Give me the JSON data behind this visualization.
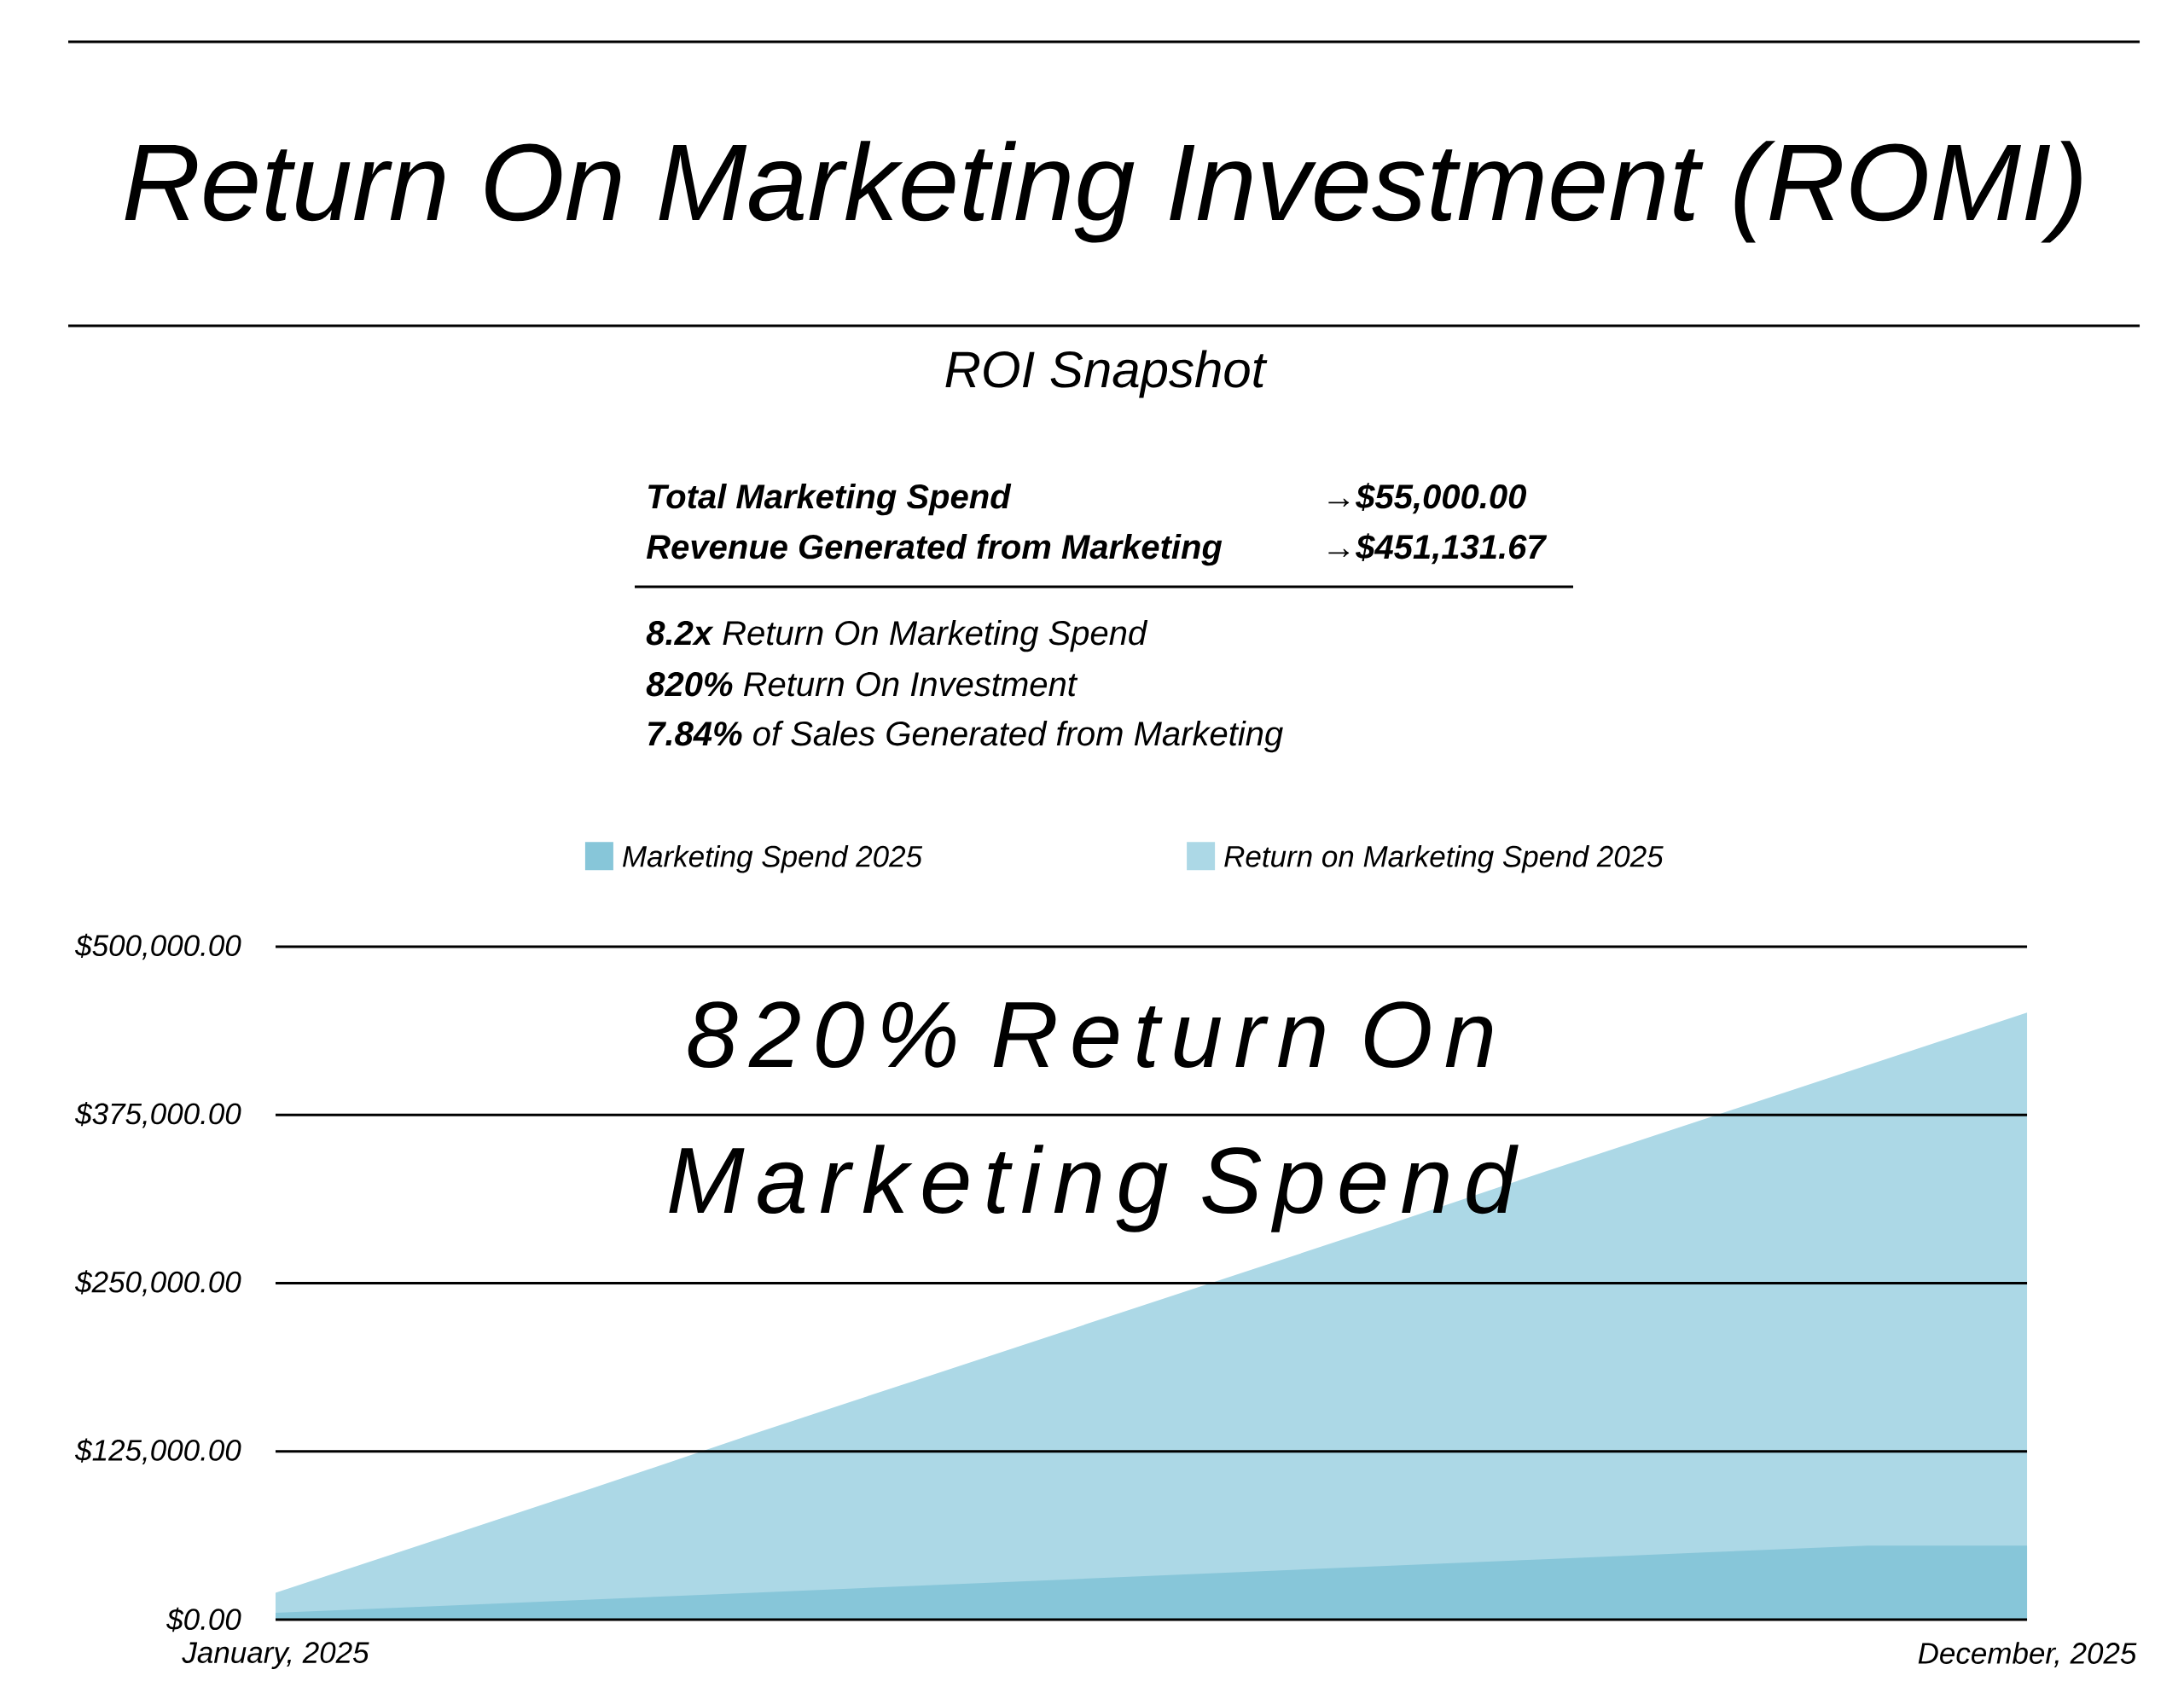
{
  "chart_data": {
    "type": "area",
    "title": "Return On Marketing Investment (ROMI)",
    "subtitle": "ROI Snapshot",
    "categories": [
      "January, 2025",
      null,
      null,
      null,
      null,
      null,
      null,
      null,
      null,
      null,
      null,
      "December, 2025"
    ],
    "series": [
      {
        "name": "Marketing Spend 2025",
        "color": "#87c6d9",
        "values": [
          5000,
          10000,
          15000,
          20000,
          25000,
          30000,
          35000,
          40000,
          45000,
          50000,
          55000,
          55000
        ]
      },
      {
        "name": "Return on Marketing Spend 2025",
        "color": "#acd8e6",
        "values": [
          20000,
          59000,
          98000,
          138000,
          177000,
          216000,
          255000,
          294000,
          334000,
          373000,
          412000,
          451000
        ]
      }
    ],
    "ylim": [
      0,
      500000
    ],
    "yticks": [
      {
        "value": 0,
        "label": "$0.00"
      },
      {
        "value": 125000,
        "label": "$125,000.00"
      },
      {
        "value": 250000,
        "label": "$250,000.00"
      },
      {
        "value": 375000,
        "label": "$375,000.00"
      },
      {
        "value": 500000,
        "label": "$500,000.00"
      }
    ],
    "grid": "y",
    "legend": "top",
    "annotations": [
      "Total Marketing Spend",
      "→$55,000.00",
      "Revenue Generated from Marketing",
      "→$451,131.67",
      "**8.2x** Return On Marketing Spend",
      "**820%** Return On Investment",
      "**7.84%** of Sales Generated from Marketing",
      "820% Return On Marketing Spend"
    ]
  }
}
